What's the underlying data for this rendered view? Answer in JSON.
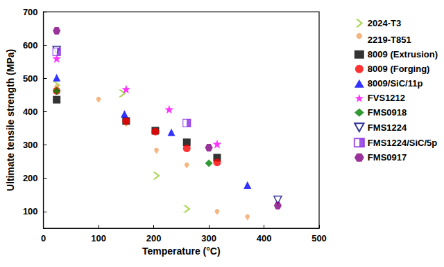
{
  "chart_data": {
    "type": "scatter",
    "x_label": "Temperature (°C)",
    "y_label": "Ultimate tensile strength (MPa)",
    "xlim": [
      0,
      500
    ],
    "xticks": [
      0,
      100,
      200,
      300,
      400,
      500
    ],
    "ylim": [
      50,
      700
    ],
    "yticks": [
      100,
      200,
      300,
      400,
      500,
      600,
      700
    ],
    "grid": false,
    "legend": "right",
    "series": [
      {
        "name": "2024-T3",
        "color": "#9acd32",
        "marker": "chevron",
        "x": [
          24,
          143,
          205,
          260
        ],
        "values": [
          480,
          455,
          208,
          108
        ]
      },
      {
        "name": "2219-T851",
        "color": "#f4a460",
        "marker": "pin",
        "x": [
          24,
          100,
          150,
          205,
          260,
          315,
          370
        ],
        "values": [
          462,
          425,
          352,
          272,
          228,
          88,
          72
        ]
      },
      {
        "name": "8009 (Extrusion)",
        "color": "#000000",
        "marker": "square",
        "x": [
          24,
          150,
          203,
          260,
          315
        ],
        "values": [
          436,
          372,
          343,
          308,
          262
        ]
      },
      {
        "name": "8009 (Forging)",
        "color": "#ff0000",
        "marker": "circle",
        "x": [
          24,
          150,
          203,
          260,
          315
        ],
        "values": [
          462,
          372,
          340,
          290,
          248
        ]
      },
      {
        "name": "8009/SiC/11p",
        "color": "#0000ff",
        "marker": "triangle",
        "x": [
          24,
          147,
          232,
          370
        ],
        "values": [
          502,
          393,
          338,
          180
        ]
      },
      {
        "name": "FVS1212",
        "color": "#ff00ff",
        "marker": "star",
        "x": [
          24,
          150,
          228,
          315
        ],
        "values": [
          560,
          468,
          407,
          303
        ]
      },
      {
        "name": "FMS0918",
        "color": "#008000",
        "marker": "diamond",
        "x": [
          24,
          300
        ],
        "values": [
          462,
          245
        ]
      },
      {
        "name": "FMS1224",
        "color": "#000080",
        "marker": "open_triangle_down",
        "x": [
          24,
          425
        ],
        "values": [
          585,
          135
        ]
      },
      {
        "name": "FMS1224/SiC/5p",
        "color": "#8a2be2",
        "marker": "half_square",
        "x": [
          24,
          260
        ],
        "values": [
          580,
          366
        ]
      },
      {
        "name": "FMS0917",
        "color": "#800080",
        "marker": "hexagon",
        "x": [
          24,
          300,
          425
        ],
        "values": [
          643,
          292,
          118
        ]
      }
    ]
  }
}
